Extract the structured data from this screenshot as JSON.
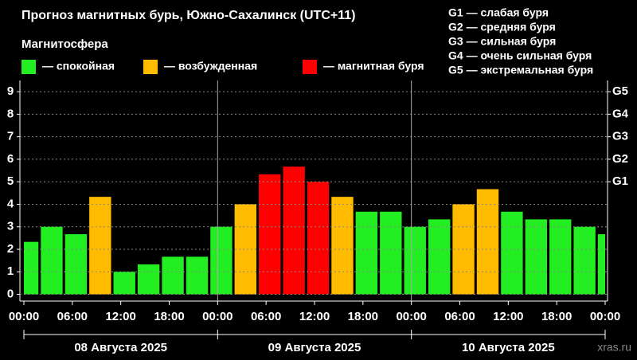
{
  "chart_data": {
    "type": "bar",
    "title": "Прогноз магнитных бурь, Южно-Сахалинск (UTC+11)",
    "subtitle": "Магнитосфера",
    "legend": [
      {
        "label": "— спокойная",
        "color": "#22ee22"
      },
      {
        "label": "— возбужденная",
        "color": "#ffbb00"
      },
      {
        "label": "— магнитная буря",
        "color": "#ff0000"
      }
    ],
    "storm_scale": [
      "G1 — слабая буря",
      "G2 — средняя буря",
      "G3 — сильная буря",
      "G4 — очень сильная буря",
      "G5 — экстремальная буря"
    ],
    "x": [
      0,
      3,
      6,
      9,
      12,
      15,
      18,
      21,
      24,
      27,
      30,
      33,
      36,
      39,
      42,
      45,
      48,
      51,
      54,
      57,
      60,
      63,
      66,
      69,
      72
    ],
    "values": [
      2.33,
      3.0,
      2.67,
      4.33,
      1.0,
      1.33,
      1.67,
      1.67,
      3.0,
      4.0,
      5.33,
      5.67,
      5.0,
      4.33,
      3.67,
      3.67,
      3.0,
      3.33,
      4.0,
      4.67,
      3.67,
      3.33,
      3.33,
      3.0,
      2.67
    ],
    "colors": [
      "#22ee22",
      "#22ee22",
      "#22ee22",
      "#ffbb00",
      "#22ee22",
      "#22ee22",
      "#22ee22",
      "#22ee22",
      "#22ee22",
      "#ffbb00",
      "#ff0000",
      "#ff0000",
      "#ff0000",
      "#ffbb00",
      "#22ee22",
      "#22ee22",
      "#22ee22",
      "#22ee22",
      "#ffbb00",
      "#ffbb00",
      "#22ee22",
      "#22ee22",
      "#22ee22",
      "#22ee22",
      "#22ee22"
    ],
    "xlim": [
      0,
      72
    ],
    "xticks": [
      {
        "value": 0,
        "label": "00:00"
      },
      {
        "value": 6,
        "label": "06:00"
      },
      {
        "value": 12,
        "label": "12:00"
      },
      {
        "value": 18,
        "label": "18:00"
      },
      {
        "value": 24,
        "label": "00:00"
      },
      {
        "value": 30,
        "label": "06:00"
      },
      {
        "value": 36,
        "label": "12:00"
      },
      {
        "value": 42,
        "label": "18:00"
      },
      {
        "value": 48,
        "label": "00:00"
      },
      {
        "value": 54,
        "label": "06:00"
      },
      {
        "value": 60,
        "label": "12:00"
      },
      {
        "value": 66,
        "label": "18:00"
      },
      {
        "value": 72,
        "label": "00:00"
      }
    ],
    "days": [
      "08 Августа 2025",
      "09 Августа 2025",
      "10 Августа 2025"
    ],
    "ylim": [
      -0.3,
      9.5
    ],
    "yticks": [
      0,
      1,
      2,
      3,
      4,
      5,
      6,
      7,
      8,
      9
    ],
    "y2ticks": [
      {
        "value": 5,
        "label": "G1"
      },
      {
        "value": 6,
        "label": "G2"
      },
      {
        "value": 7,
        "label": "G3"
      },
      {
        "value": 8,
        "label": "G4"
      },
      {
        "value": 9,
        "label": "G5"
      }
    ],
    "grid": true,
    "watermark": "xras.ru"
  }
}
